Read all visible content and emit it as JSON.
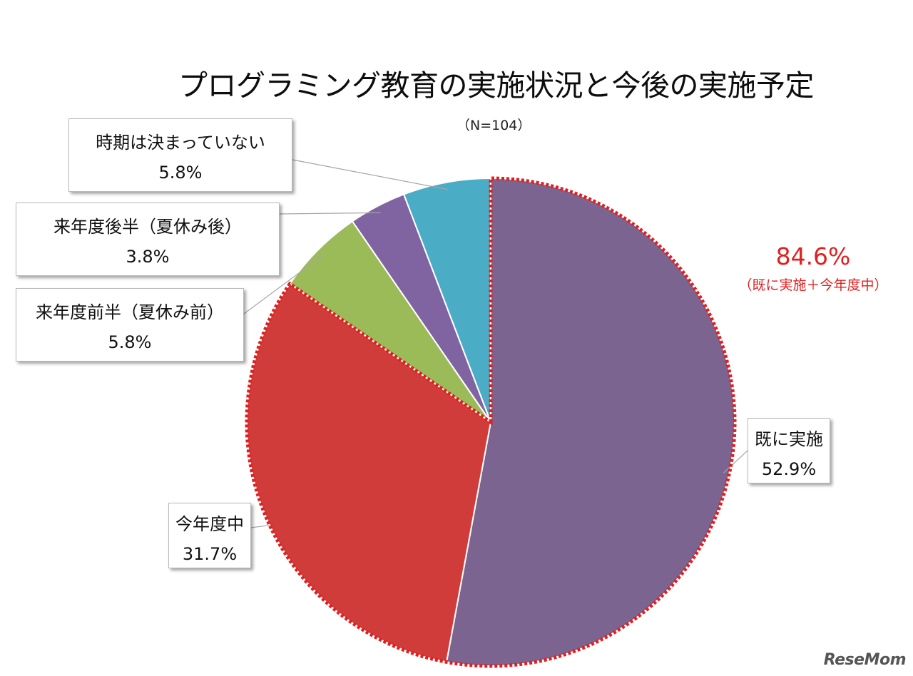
{
  "chart_data": {
    "type": "pie",
    "title": "プログラミング教育の実施状況と今後の実施予定",
    "subtitle": "（N=104）",
    "slices": [
      {
        "label": "既に実施",
        "value": 52.9,
        "value_text": "52.9%",
        "color": "#7b6490"
      },
      {
        "label": "今年度中",
        "value": 31.7,
        "value_text": "31.7%",
        "color": "#d03c3a"
      },
      {
        "label": "来年度前半（夏休み前）",
        "value": 5.8,
        "value_text": "5.8%",
        "color": "#9bbb59"
      },
      {
        "label": "来年度後半（夏休み後）",
        "value": 3.8,
        "value_text": "3.8%",
        "color": "#8064a2"
      },
      {
        "label": "時期は決まっていない",
        "value": 5.8,
        "value_text": "5.8%",
        "color": "#4bacc6"
      }
    ],
    "start_angle": "12 o'clock",
    "direction": "clockwise",
    "highlight": {
      "slices": [
        "既に実施",
        "今年度中"
      ],
      "value": "84.6%",
      "note": "（既に実施＋今年度中）",
      "color": "#e02020"
    }
  },
  "logo": {
    "text": "ReseMom"
  }
}
